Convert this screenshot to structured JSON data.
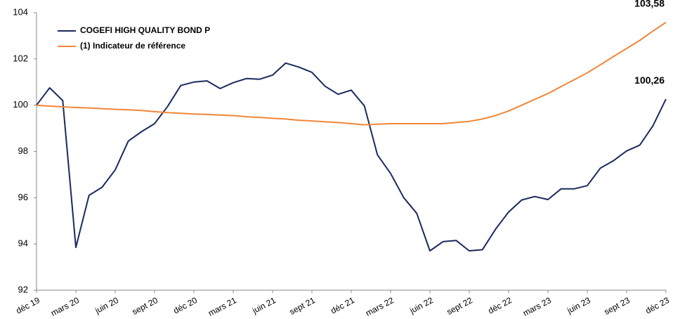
{
  "chart_data": {
    "type": "line",
    "categories": [
      "déc 19",
      null,
      null,
      "mars 20",
      null,
      null,
      "juin 20",
      null,
      null,
      "sept 20",
      null,
      null,
      "déc 20",
      null,
      null,
      "mars 21",
      null,
      null,
      "juin 21",
      null,
      null,
      "sept 21",
      null,
      null,
      "déc 21",
      null,
      null,
      "mars 22",
      null,
      null,
      "juin 22",
      null,
      null,
      "sept 22",
      null,
      null,
      "déc 22",
      null,
      null,
      "mars 23",
      null,
      null,
      "juin 23",
      null,
      null,
      "sept 23",
      null,
      null,
      "déc 23"
    ],
    "series": [
      {
        "name": "COGEFI HIGH QUALITY BOND P",
        "color": "#1b2a5e",
        "values": [
          100.0,
          100.75,
          100.2,
          93.85,
          96.1,
          96.45,
          97.2,
          98.45,
          98.85,
          99.2,
          99.95,
          100.85,
          101.0,
          101.05,
          100.72,
          100.97,
          101.15,
          101.12,
          101.3,
          101.82,
          101.65,
          101.42,
          100.82,
          100.47,
          100.65,
          99.97,
          97.85,
          97.05,
          96.0,
          95.32,
          93.7,
          94.1,
          94.15,
          93.7,
          93.75,
          94.63,
          95.38,
          95.9,
          96.05,
          95.92,
          96.38,
          96.38,
          96.52,
          97.28,
          97.6,
          98.02,
          98.27,
          99.1,
          100.26
        ],
        "value_labels": [
          null,
          null,
          null,
          null,
          null,
          null,
          null,
          null,
          null,
          null,
          null,
          null,
          null,
          null,
          null,
          null,
          null,
          null,
          null,
          null,
          null,
          null,
          null,
          null,
          null,
          null,
          null,
          null,
          null,
          null,
          null,
          null,
          null,
          null,
          null,
          null,
          null,
          null,
          null,
          null,
          null,
          null,
          null,
          null,
          null,
          null,
          null,
          null,
          "100,26"
        ]
      },
      {
        "name": "(1) Indicateur de référence",
        "color": "#f0873a",
        "values": [
          100.0,
          99.96,
          99.93,
          99.9,
          99.88,
          99.85,
          99.82,
          99.8,
          99.77,
          99.72,
          99.68,
          99.65,
          99.62,
          99.6,
          99.57,
          99.55,
          99.5,
          99.47,
          99.43,
          99.4,
          99.35,
          99.32,
          99.28,
          99.25,
          99.2,
          99.15,
          99.18,
          99.2,
          99.2,
          99.2,
          99.2,
          99.2,
          99.25,
          99.3,
          99.4,
          99.55,
          99.75,
          100.0,
          100.25,
          100.5,
          100.8,
          101.1,
          101.4,
          101.75,
          102.1,
          102.45,
          102.8,
          103.2,
          103.58
        ],
        "value_labels": [
          null,
          null,
          null,
          null,
          null,
          null,
          null,
          null,
          null,
          null,
          null,
          null,
          null,
          null,
          null,
          null,
          null,
          null,
          null,
          null,
          null,
          null,
          null,
          null,
          null,
          null,
          null,
          null,
          null,
          null,
          null,
          null,
          null,
          null,
          null,
          null,
          null,
          null,
          null,
          null,
          null,
          null,
          null,
          null,
          null,
          null,
          null,
          null,
          "103,58"
        ]
      }
    ],
    "ylim": [
      92,
      104
    ],
    "yticks": [
      92,
      94,
      96,
      98,
      100,
      102,
      104
    ],
    "grid": false,
    "legend": "upper left"
  }
}
